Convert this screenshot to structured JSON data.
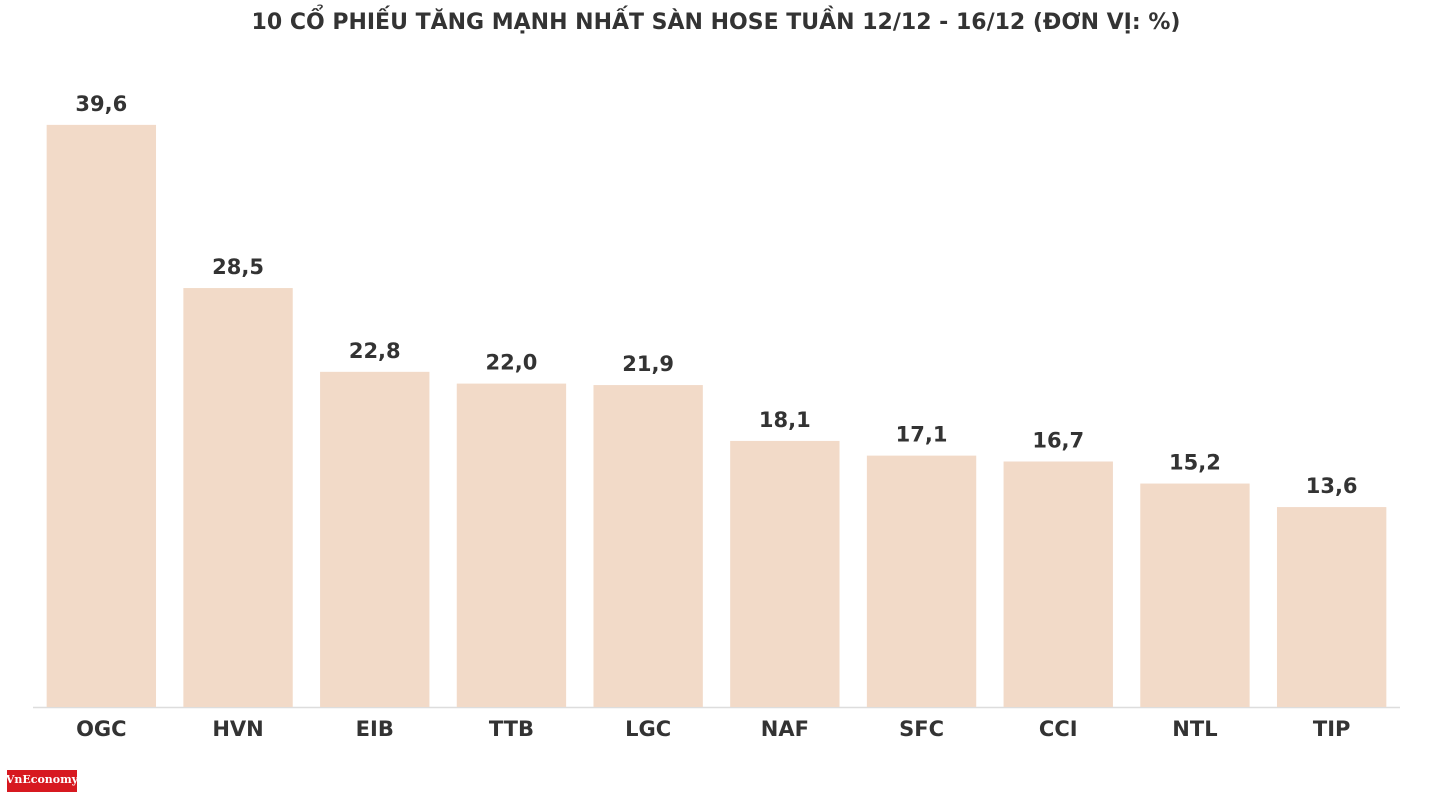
{
  "chart_data": {
    "type": "bar",
    "title": "10 CỔ PHIẾU TĂNG MẠNH NHẤT SÀN HOSE TUẦN 12/12 - 16/12 (ĐƠN VỊ: %)",
    "categories": [
      "OGC",
      "HVN",
      "EIB",
      "TTB",
      "LGC",
      "NAF",
      "SFC",
      "CCI",
      "NTL",
      "TIP"
    ],
    "values": [
      39.6,
      28.5,
      22.8,
      22.0,
      21.9,
      18.1,
      17.1,
      16.7,
      15.2,
      13.6
    ],
    "value_labels": [
      "39,6",
      "28,5",
      "22,8",
      "22,0",
      "21,9",
      "18,1",
      "17,1",
      "16,7",
      "15,2",
      "13,6"
    ],
    "color": "#f2dac8",
    "ylim": [
      0,
      40
    ],
    "grid": false,
    "logo": "VnEconomy"
  }
}
